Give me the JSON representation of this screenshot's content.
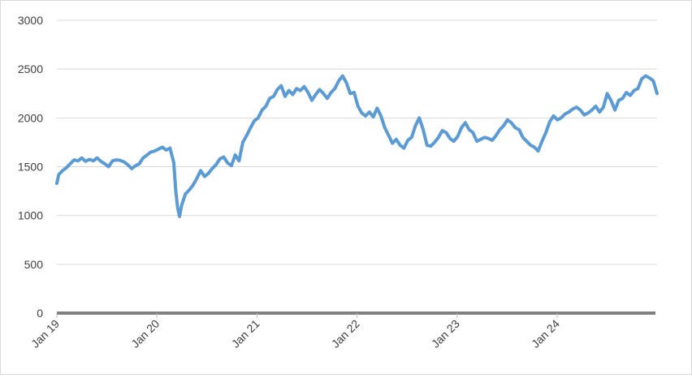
{
  "chart_data": {
    "type": "line",
    "title": "",
    "xlabel": "",
    "ylabel": "",
    "ylim": [
      0,
      3000
    ],
    "yticks": [
      0,
      500,
      1000,
      1500,
      2000,
      2500,
      3000
    ],
    "xlim": [
      "2019-01-01",
      "2024-12-31"
    ],
    "xtick_labels": [
      "Jan 19",
      "Jan 20",
      "Jan 21",
      "Jan 22",
      "Jan 23",
      "Jan 24"
    ],
    "xtick_dates": [
      "2019-01-01",
      "2020-01-01",
      "2021-01-01",
      "2022-01-01",
      "2023-01-01",
      "2024-01-01"
    ],
    "grid": true,
    "legend": "none",
    "series": [
      {
        "color": "#5b9bd5",
        "points": [
          [
            "2019-01-01",
            1330
          ],
          [
            "2019-01-08",
            1420
          ],
          [
            "2019-01-22",
            1460
          ],
          [
            "2019-02-05",
            1490
          ],
          [
            "2019-02-19",
            1530
          ],
          [
            "2019-03-05",
            1570
          ],
          [
            "2019-03-19",
            1560
          ],
          [
            "2019-04-02",
            1590
          ],
          [
            "2019-04-16",
            1555
          ],
          [
            "2019-04-30",
            1575
          ],
          [
            "2019-05-14",
            1560
          ],
          [
            "2019-05-28",
            1590
          ],
          [
            "2019-06-11",
            1555
          ],
          [
            "2019-06-25",
            1530
          ],
          [
            "2019-07-09",
            1500
          ],
          [
            "2019-07-23",
            1560
          ],
          [
            "2019-08-06",
            1570
          ],
          [
            "2019-08-20",
            1565
          ],
          [
            "2019-09-03",
            1550
          ],
          [
            "2019-09-17",
            1520
          ],
          [
            "2019-10-01",
            1480
          ],
          [
            "2019-10-15",
            1510
          ],
          [
            "2019-10-29",
            1530
          ],
          [
            "2019-11-12",
            1590
          ],
          [
            "2019-11-26",
            1620
          ],
          [
            "2019-12-10",
            1650
          ],
          [
            "2019-12-24",
            1660
          ],
          [
            "2020-01-07",
            1680
          ],
          [
            "2020-01-21",
            1700
          ],
          [
            "2020-02-04",
            1670
          ],
          [
            "2020-02-18",
            1690
          ],
          [
            "2020-03-03",
            1540
          ],
          [
            "2020-03-10",
            1250
          ],
          [
            "2020-03-17",
            1080
          ],
          [
            "2020-03-24",
            990
          ],
          [
            "2020-03-31",
            1100
          ],
          [
            "2020-04-14",
            1220
          ],
          [
            "2020-04-28",
            1260
          ],
          [
            "2020-05-12",
            1310
          ],
          [
            "2020-05-26",
            1380
          ],
          [
            "2020-06-09",
            1460
          ],
          [
            "2020-06-23",
            1400
          ],
          [
            "2020-07-07",
            1430
          ],
          [
            "2020-07-21",
            1480
          ],
          [
            "2020-08-04",
            1520
          ],
          [
            "2020-08-18",
            1580
          ],
          [
            "2020-09-01",
            1600
          ],
          [
            "2020-09-15",
            1540
          ],
          [
            "2020-09-29",
            1510
          ],
          [
            "2020-10-13",
            1620
          ],
          [
            "2020-10-27",
            1560
          ],
          [
            "2020-11-10",
            1750
          ],
          [
            "2020-11-24",
            1820
          ],
          [
            "2020-12-08",
            1900
          ],
          [
            "2020-12-22",
            1970
          ],
          [
            "2021-01-05",
            2000
          ],
          [
            "2021-01-19",
            2080
          ],
          [
            "2021-02-02",
            2120
          ],
          [
            "2021-02-16",
            2200
          ],
          [
            "2021-03-02",
            2220
          ],
          [
            "2021-03-16",
            2290
          ],
          [
            "2021-03-30",
            2330
          ],
          [
            "2021-04-13",
            2220
          ],
          [
            "2021-04-27",
            2280
          ],
          [
            "2021-05-11",
            2240
          ],
          [
            "2021-05-25",
            2300
          ],
          [
            "2021-06-08",
            2280
          ],
          [
            "2021-06-22",
            2320
          ],
          [
            "2021-07-06",
            2260
          ],
          [
            "2021-07-20",
            2180
          ],
          [
            "2021-08-03",
            2240
          ],
          [
            "2021-08-17",
            2290
          ],
          [
            "2021-08-31",
            2250
          ],
          [
            "2021-09-14",
            2200
          ],
          [
            "2021-09-28",
            2260
          ],
          [
            "2021-10-12",
            2300
          ],
          [
            "2021-10-26",
            2380
          ],
          [
            "2021-11-09",
            2430
          ],
          [
            "2021-11-23",
            2360
          ],
          [
            "2021-12-07",
            2250
          ],
          [
            "2021-12-21",
            2260
          ],
          [
            "2022-01-04",
            2120
          ],
          [
            "2022-01-18",
            2050
          ],
          [
            "2022-02-01",
            2020
          ],
          [
            "2022-02-15",
            2060
          ],
          [
            "2022-03-01",
            2010
          ],
          [
            "2022-03-15",
            2100
          ],
          [
            "2022-03-29",
            2020
          ],
          [
            "2022-04-12",
            1900
          ],
          [
            "2022-04-26",
            1820
          ],
          [
            "2022-05-10",
            1740
          ],
          [
            "2022-05-24",
            1780
          ],
          [
            "2022-06-07",
            1720
          ],
          [
            "2022-06-21",
            1690
          ],
          [
            "2022-07-05",
            1770
          ],
          [
            "2022-07-19",
            1800
          ],
          [
            "2022-08-02",
            1920
          ],
          [
            "2022-08-16",
            2000
          ],
          [
            "2022-08-30",
            1880
          ],
          [
            "2022-09-13",
            1720
          ],
          [
            "2022-09-27",
            1710
          ],
          [
            "2022-10-11",
            1750
          ],
          [
            "2022-10-25",
            1800
          ],
          [
            "2022-11-08",
            1870
          ],
          [
            "2022-11-22",
            1850
          ],
          [
            "2022-12-06",
            1790
          ],
          [
            "2022-12-20",
            1760
          ],
          [
            "2023-01-03",
            1810
          ],
          [
            "2023-01-17",
            1900
          ],
          [
            "2023-01-31",
            1950
          ],
          [
            "2023-02-14",
            1880
          ],
          [
            "2023-02-28",
            1850
          ],
          [
            "2023-03-14",
            1760
          ],
          [
            "2023-03-28",
            1780
          ],
          [
            "2023-04-11",
            1800
          ],
          [
            "2023-04-25",
            1790
          ],
          [
            "2023-05-09",
            1770
          ],
          [
            "2023-05-23",
            1820
          ],
          [
            "2023-06-06",
            1880
          ],
          [
            "2023-06-20",
            1920
          ],
          [
            "2023-07-04",
            1980
          ],
          [
            "2023-07-18",
            1950
          ],
          [
            "2023-08-01",
            1900
          ],
          [
            "2023-08-15",
            1880
          ],
          [
            "2023-08-29",
            1800
          ],
          [
            "2023-09-12",
            1760
          ],
          [
            "2023-09-26",
            1720
          ],
          [
            "2023-10-10",
            1700
          ],
          [
            "2023-10-24",
            1660
          ],
          [
            "2023-11-07",
            1760
          ],
          [
            "2023-11-21",
            1850
          ],
          [
            "2023-12-05",
            1960
          ],
          [
            "2023-12-19",
            2020
          ],
          [
            "2024-01-02",
            1980
          ],
          [
            "2024-01-16",
            2000
          ],
          [
            "2024-01-30",
            2040
          ],
          [
            "2024-02-13",
            2060
          ],
          [
            "2024-02-27",
            2090
          ],
          [
            "2024-03-12",
            2110
          ],
          [
            "2024-03-26",
            2080
          ],
          [
            "2024-04-09",
            2030
          ],
          [
            "2024-04-23",
            2050
          ],
          [
            "2024-05-07",
            2080
          ],
          [
            "2024-05-21",
            2120
          ],
          [
            "2024-06-04",
            2060
          ],
          [
            "2024-06-18",
            2110
          ],
          [
            "2024-07-02",
            2250
          ],
          [
            "2024-07-16",
            2180
          ],
          [
            "2024-07-30",
            2080
          ],
          [
            "2024-08-13",
            2180
          ],
          [
            "2024-08-27",
            2200
          ],
          [
            "2024-09-10",
            2260
          ],
          [
            "2024-09-24",
            2230
          ],
          [
            "2024-10-08",
            2280
          ],
          [
            "2024-10-22",
            2300
          ],
          [
            "2024-11-05",
            2400
          ],
          [
            "2024-11-19",
            2430
          ],
          [
            "2024-12-03",
            2410
          ],
          [
            "2024-12-17",
            2380
          ],
          [
            "2024-12-31",
            2250
          ]
        ]
      }
    ]
  }
}
